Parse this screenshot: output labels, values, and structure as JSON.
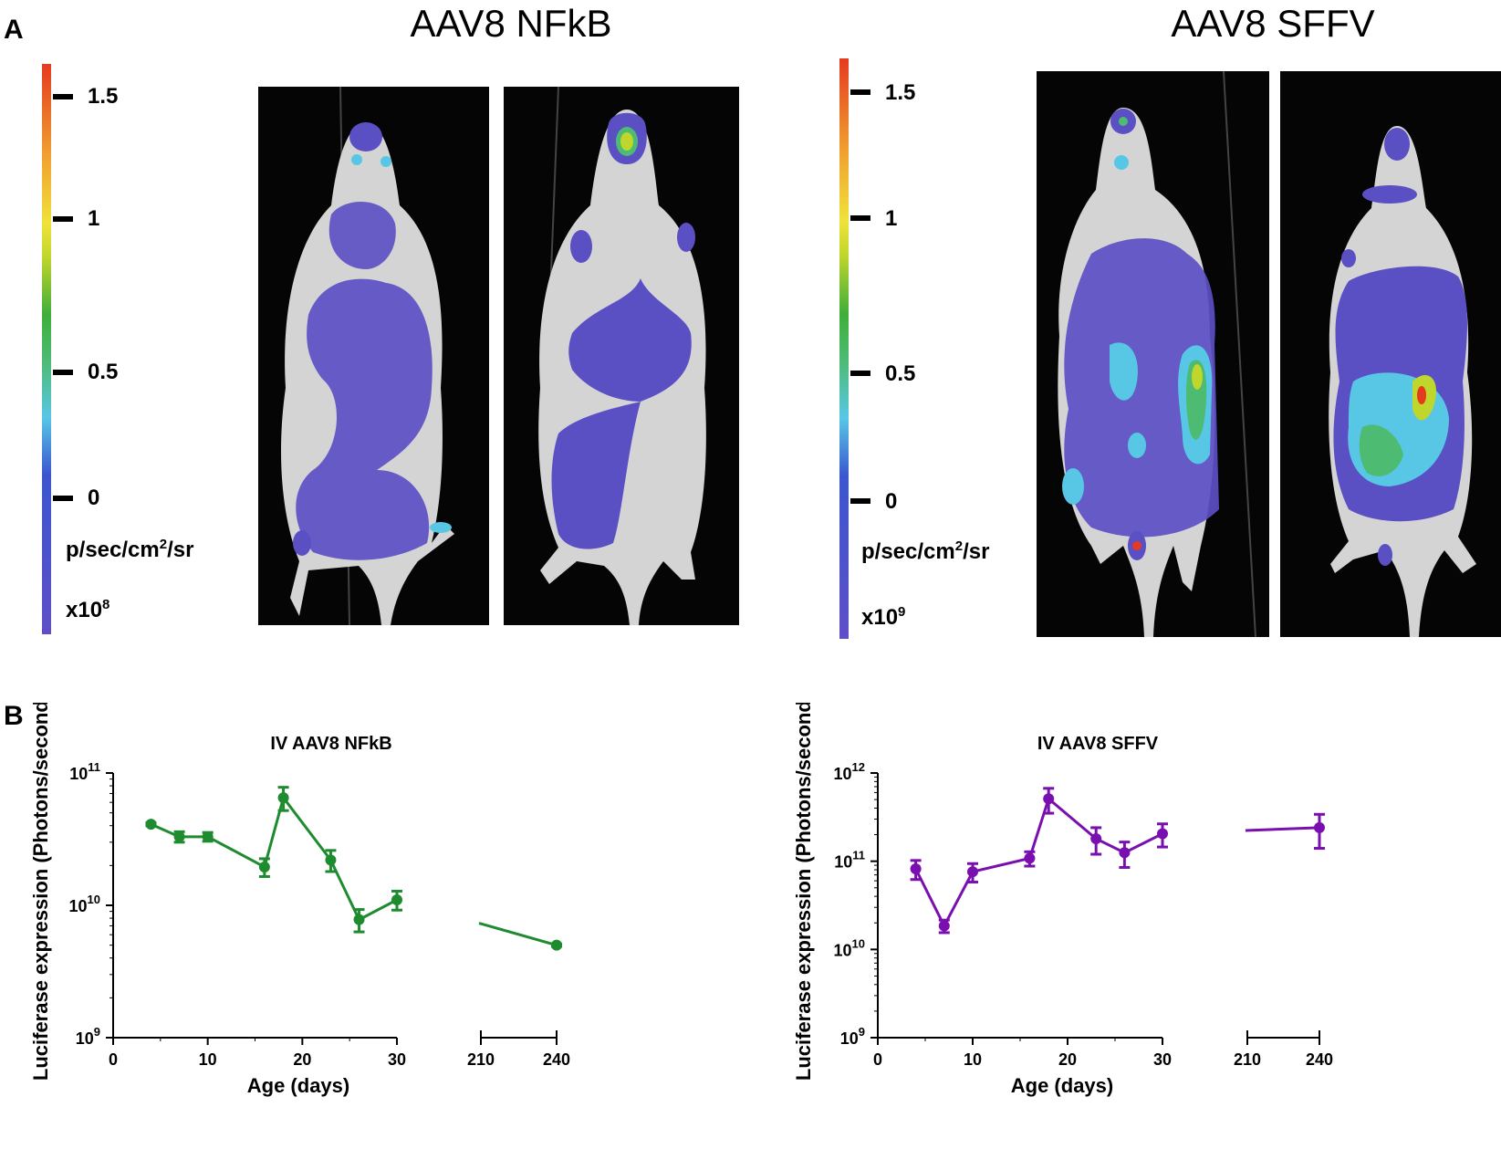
{
  "panel_labels": {
    "a": "A",
    "b": "B"
  },
  "imaging": {
    "left": {
      "title": "AAV8 NFkB",
      "colorbar": {
        "ticks": [
          "1.5",
          "1",
          "0.5",
          "0"
        ],
        "unit_main": "p/sec/cm",
        "unit_sup": "2",
        "unit_tail": "/sr",
        "scale_base": "x10",
        "scale_exp": "8"
      }
    },
    "right": {
      "title": "AAV8 SFFV",
      "colorbar": {
        "ticks": [
          "1.5",
          "1",
          "0.5",
          "0"
        ],
        "unit_main": "p/sec/cm",
        "unit_sup": "2",
        "unit_tail": "/sr",
        "scale_base": "x10",
        "scale_exp": "9"
      }
    }
  },
  "chart_data": [
    {
      "type": "line",
      "title": "IV AAV8 NFkB",
      "xlabel": "Age (days)",
      "ylabel": "Luciferase expression (Photons/second)",
      "color": "#1e8b2e",
      "yscale": "log",
      "ylim": [
        1000000000.0,
        100000000000.0
      ],
      "y_ticks": [
        {
          "base": "10",
          "exp": "9"
        },
        {
          "base": "10",
          "exp": "10"
        },
        {
          "base": "10",
          "exp": "11"
        }
      ],
      "x_ticks_seg1": [
        "0",
        "10",
        "20",
        "30"
      ],
      "x_ticks_seg2": [
        "210",
        "240"
      ],
      "series": [
        {
          "name": "IV AAV8 NFkB",
          "x": [
            4,
            7,
            10,
            16,
            18,
            23,
            26,
            30,
            240
          ],
          "y": [
            41000000000.0,
            33000000000.0,
            33000000000.0,
            19500000000.0,
            65000000000.0,
            22000000000.0,
            7800000000.0,
            11000000000.0,
            5000000000.0
          ],
          "err": [
            1000000000.0,
            3000000000.0,
            2500000000.0,
            3000000000.0,
            13000000000.0,
            4000000000.0,
            1500000000.0,
            1800000000.0,
            100000000.0
          ]
        }
      ]
    },
    {
      "type": "line",
      "title": "IV AAV8 SFFV",
      "xlabel": "Age (days)",
      "ylabel": "Luciferase expression (Photons/second)",
      "color": "#7a0fb0",
      "yscale": "log",
      "ylim": [
        1000000000.0,
        1000000000000.0
      ],
      "y_ticks": [
        {
          "base": "10",
          "exp": "9"
        },
        {
          "base": "10",
          "exp": "10"
        },
        {
          "base": "10",
          "exp": "11"
        },
        {
          "base": "10",
          "exp": "12"
        }
      ],
      "x_ticks_seg1": [
        "0",
        "10",
        "20",
        "30"
      ],
      "x_ticks_seg2": [
        "210",
        "240"
      ],
      "series": [
        {
          "name": "IV AAV8 SFFV",
          "x": [
            4,
            7,
            10,
            16,
            18,
            23,
            26,
            30,
            240
          ],
          "y": [
            82000000000.0,
            18500000000.0,
            76000000000.0,
            108000000000.0,
            510000000000.0,
            180000000000.0,
            125000000000.0,
            205000000000.0,
            240000000000.0
          ],
          "err": [
            20000000000.0,
            3000000000.0,
            18000000000.0,
            20000000000.0,
            160000000000.0,
            60000000000.0,
            40000000000.0,
            60000000000.0,
            100000000000.0
          ]
        }
      ]
    }
  ]
}
